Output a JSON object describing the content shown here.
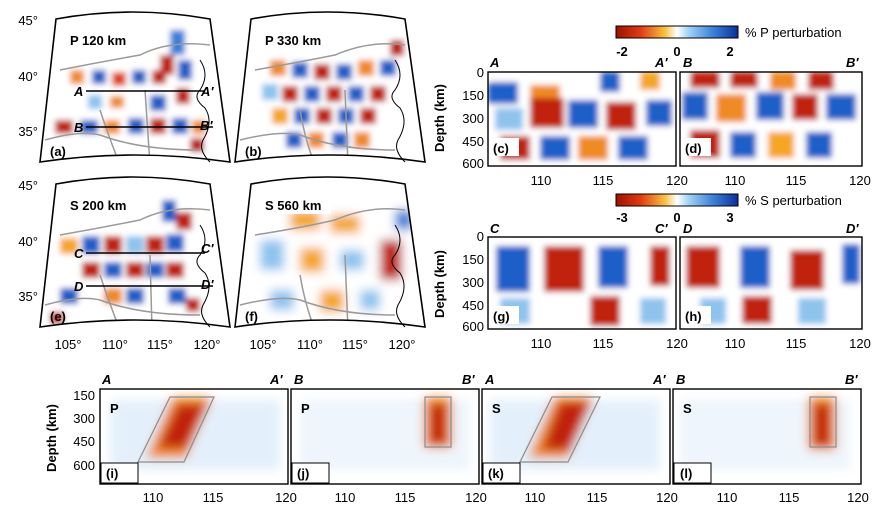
{
  "maps": {
    "panels": [
      {
        "id": "a",
        "label": "(a)",
        "title": "P 120 km"
      },
      {
        "id": "b",
        "label": "(b)",
        "title": "P 330 km"
      },
      {
        "id": "e",
        "label": "(e)",
        "title": "S 200 km"
      },
      {
        "id": "f",
        "label": "(f)",
        "title": "S 560 km"
      }
    ],
    "lat_ticks": [
      "45°",
      "40°",
      "35°"
    ],
    "lon_ticks": [
      "105°",
      "110°",
      "115°",
      "120°"
    ],
    "profile_lines": [
      {
        "start": "A",
        "end": "A′"
      },
      {
        "start": "B",
        "end": "B′"
      },
      {
        "start": "C",
        "end": "C′"
      },
      {
        "start": "D",
        "end": "D′"
      }
    ]
  },
  "colorbars": {
    "p": {
      "min": "-2",
      "mid": "0",
      "max": "2",
      "label": "% P perturbation"
    },
    "s": {
      "min": "-3",
      "mid": "0",
      "max": "3",
      "label": "% S perturbation"
    }
  },
  "sections": {
    "depth_label": "Depth (km)",
    "depth_ticks": [
      "0",
      "150",
      "300",
      "450",
      "600"
    ],
    "depth_ticks_bottom": [
      "150",
      "300",
      "450",
      "600"
    ],
    "x_ticks": [
      "110",
      "115",
      "120"
    ],
    "panels": [
      {
        "id": "c",
        "label": "(c)",
        "start": "A",
        "end": "A′"
      },
      {
        "id": "d",
        "label": "(d)",
        "start": "B",
        "end": "B′"
      },
      {
        "id": "g",
        "label": "(g)",
        "start": "C",
        "end": "C′"
      },
      {
        "id": "h",
        "label": "(h)",
        "start": "D",
        "end": "D′"
      }
    ]
  },
  "bottom": {
    "panels": [
      {
        "id": "i",
        "label": "(i)",
        "phase": "P",
        "start": "A",
        "end": "A′"
      },
      {
        "id": "j",
        "label": "(j)",
        "phase": "P",
        "start": "B",
        "end": "B′"
      },
      {
        "id": "k",
        "label": "(k)",
        "phase": "S",
        "start": "A",
        "end": "A′"
      },
      {
        "id": "l",
        "label": "(l)",
        "phase": "S",
        "start": "B",
        "end": "B′"
      }
    ]
  },
  "colors": {
    "red": "#c0200a",
    "orange": "#f5a623",
    "blue": "#1a5fc8",
    "lightblue": "#8ec3ee",
    "gray": "#9a9a9a"
  }
}
